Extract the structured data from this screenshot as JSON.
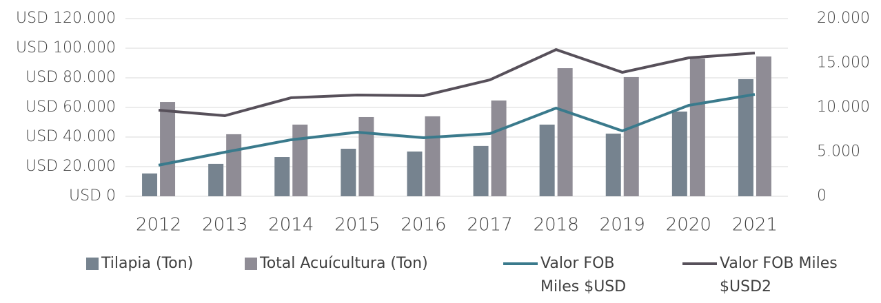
{
  "chart_data": {
    "type": "bar_line",
    "categories": [
      "2012",
      "2013",
      "2014",
      "2015",
      "2016",
      "2017",
      "2018",
      "2019",
      "2020",
      "2021"
    ],
    "series": [
      {
        "name": "Tilapia (Ton)",
        "type": "bar",
        "color": "#76838f",
        "values": [
          15400,
          21900,
          26500,
          32100,
          30200,
          34000,
          48400,
          42300,
          57200,
          79100
        ]
      },
      {
        "name": "Total Acuícultura (Ton)",
        "type": "bar",
        "color": "#8f8c95",
        "values": [
          63700,
          41900,
          48400,
          53500,
          54000,
          64700,
          86500,
          80500,
          93000,
          94400
        ]
      },
      {
        "name": "Valor FOB Miles $USD",
        "type": "line",
        "axis": "y2",
        "color": "#3a7a8c",
        "values": [
          3500,
          4960,
          6360,
          7210,
          6590,
          7050,
          9920,
          7360,
          10230,
          11470
        ]
      },
      {
        "name": "Valor FOB Miles $USD2",
        "type": "line",
        "axis": "y2",
        "color": "#57505a",
        "values": [
          9690,
          9070,
          11090,
          11400,
          11320,
          13100,
          16510,
          13950,
          15580,
          16120
        ]
      }
    ],
    "ylim": [
      0,
      120000
    ],
    "yticks": [
      {
        "value": 0,
        "label": "USD 0"
      },
      {
        "value": 20000,
        "label": "USD 20.000"
      },
      {
        "value": 40000,
        "label": "USD 40.000"
      },
      {
        "value": 60000,
        "label": "USD 60.000"
      },
      {
        "value": 80000,
        "label": "USD 80.000"
      },
      {
        "value": 100000,
        "label": "USD 100.000"
      },
      {
        "value": 120000,
        "label": "USD 120.000"
      }
    ],
    "y2lim": [
      0,
      20000
    ],
    "y2ticks": [
      0,
      {
        "value": 5000,
        "label": "5.000"
      },
      {
        "value": 10000,
        "label": "10.000"
      },
      {
        "value": 15000,
        "label": "15.000"
      },
      {
        "value": 20000,
        "label": "20.000"
      }
    ],
    "grid": true,
    "legend": "bottom"
  }
}
